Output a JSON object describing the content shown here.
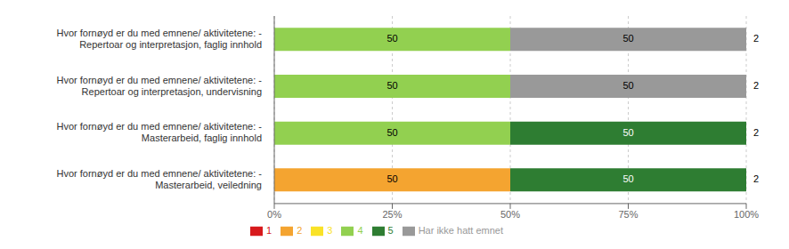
{
  "chart_data": {
    "type": "bar",
    "orientation": "horizontal",
    "stacked": true,
    "data_labels": true,
    "grid": true,
    "legend": "bottom",
    "categories": [
      "Hvor fornøyd er du med emnene/ aktivitetene: -\nRepertoar og interpretasjon, faglig innhold",
      "Hvor fornøyd er du med emnene/ aktivitetene: -\nRepertoar og interpretasjon, undervisning",
      "Hvor fornøyd er du med emnene/ aktivitetene: -\nMasterarbeid, faglig innhold",
      "Hvor fornøyd er du med emnene/ aktivitetene: -\nMasterarbeid, veiledning"
    ],
    "n_values": [
      2,
      2,
      2,
      2
    ],
    "series": [
      {
        "name": "1",
        "color": "#d7191c",
        "values": [
          0,
          0,
          0,
          0
        ]
      },
      {
        "name": "2",
        "color": "#f4a430",
        "values": [
          0,
          0,
          0,
          50
        ]
      },
      {
        "name": "3",
        "color": "#f9e227",
        "values": [
          0,
          0,
          0,
          0
        ]
      },
      {
        "name": "4",
        "color": "#92d050",
        "values": [
          50,
          50,
          50,
          0
        ]
      },
      {
        "name": "5",
        "color": "#2e7d32",
        "values": [
          0,
          0,
          50,
          50
        ]
      },
      {
        "name": "Har ikke hatt emnet",
        "color": "#999999",
        "values": [
          50,
          50,
          0,
          0
        ]
      }
    ],
    "xlim": [
      0,
      100
    ],
    "xticks": [
      {
        "value": 0,
        "label": "0%"
      },
      {
        "value": 25,
        "label": "25%"
      },
      {
        "value": 50,
        "label": "50%"
      },
      {
        "value": 75,
        "label": "75%"
      },
      {
        "value": 100,
        "label": "100%"
      }
    ]
  }
}
